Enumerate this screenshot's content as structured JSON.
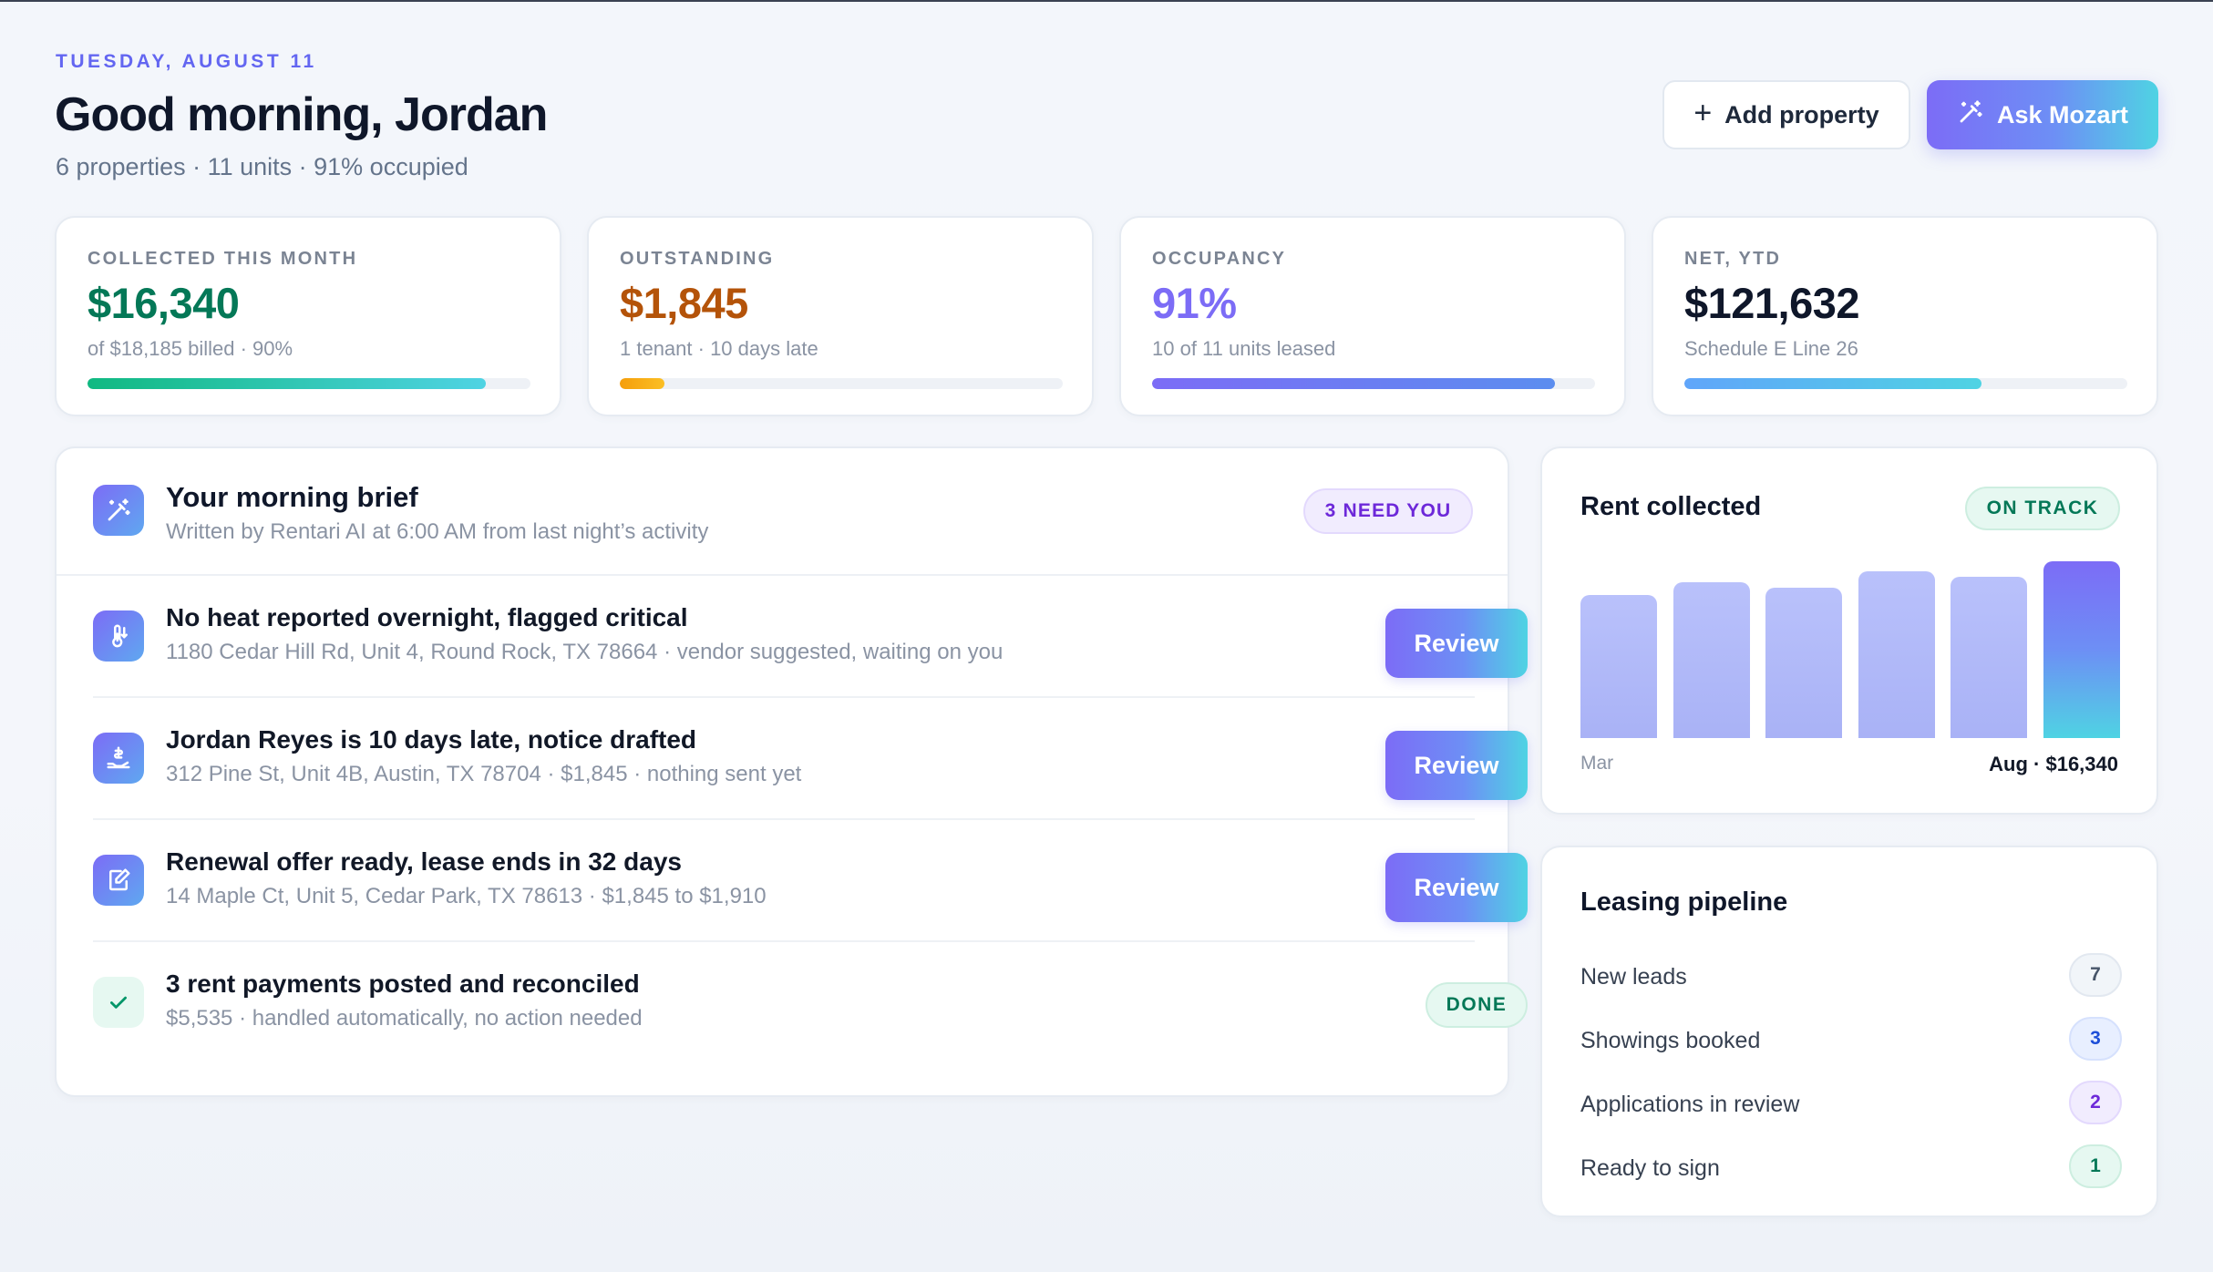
{
  "header": {
    "date": "TUESDAY, AUGUST 11",
    "greeting": "Good morning, Jordan",
    "summary": "6 properties · 11 units · 91% occupied",
    "add_property_label": "Add property",
    "ask_label": "Ask Mozart"
  },
  "stats": [
    {
      "label": "COLLECTED THIS MONTH",
      "value": "$16,340",
      "sub": "of $18,185 billed · 90%",
      "progress": 0.9,
      "color": "#047857"
    },
    {
      "label": "OUTSTANDING",
      "value": "$1,845",
      "sub": "1 tenant · 10 days late",
      "progress": 0.1,
      "color": "#b45309"
    },
    {
      "label": "OCCUPANCY",
      "value": "91%",
      "sub": "10 of 11 units leased",
      "progress": 0.91,
      "color": "#7c6cf6"
    },
    {
      "label": "NET, YTD",
      "value": "$121,632",
      "sub": "Schedule E Line 26",
      "progress": 0.67,
      "color": "#0f172a"
    }
  ],
  "brief": {
    "title": "Your morning brief",
    "subtitle": "Written by Rentari AI at 6:00 AM from last night’s activity",
    "badge": "3 NEED YOU",
    "items": [
      {
        "icon": "thermometer-icon",
        "title": "No heat reported overnight, flagged critical",
        "sub": "1180 Cedar Hill Rd, Unit 4, Round Rock, TX 78664 · vendor suggested, waiting on you",
        "action": "Review"
      },
      {
        "icon": "payment-hand-icon",
        "title": "Jordan Reyes is 10 days late, notice drafted",
        "sub": "312 Pine St, Unit 4B, Austin, TX 78704 · $1,845 · nothing sent yet",
        "action": "Review"
      },
      {
        "icon": "document-edit-icon",
        "title": "Renewal offer ready, lease ends in 32 days",
        "sub": "14 Maple Ct, Unit 5, Cedar Park, TX 78613 · $1,845 to $1,910",
        "action": "Review"
      }
    ],
    "done_item": {
      "icon": "check-icon",
      "title": "3 rent payments posted and reconciled",
      "sub": "$5,535 · handled automatically, no action needed",
      "status": "DONE"
    }
  },
  "rent_collected": {
    "title": "Rent collected",
    "status": "ON TRACK",
    "start_label": "Mar",
    "end_label": "Aug · $16,340",
    "chart_data": {
      "type": "bar",
      "values": [
        13200,
        14400,
        13900,
        15400,
        14900,
        16340
      ],
      "ylim": [
        0,
        17500
      ]
    }
  },
  "pipeline": {
    "title": "Leasing pipeline",
    "items": [
      {
        "label": "New leads",
        "count": "7",
        "bg": "#f1f5f9",
        "border": "#e2e8f0",
        "fg": "#475569"
      },
      {
        "label": "Showings booked",
        "count": "3",
        "bg": "#e8efff",
        "border": "#d6e1fd",
        "fg": "#1d4ed8"
      },
      {
        "label": "Applications in review",
        "count": "2",
        "bg": "#f1ecfe",
        "border": "#e3d9fd",
        "fg": "#6d28d9"
      },
      {
        "label": "Ready to sign",
        "count": "1",
        "bg": "#e6f8f1",
        "border": "#cdeee0",
        "fg": "#047857"
      }
    ]
  }
}
